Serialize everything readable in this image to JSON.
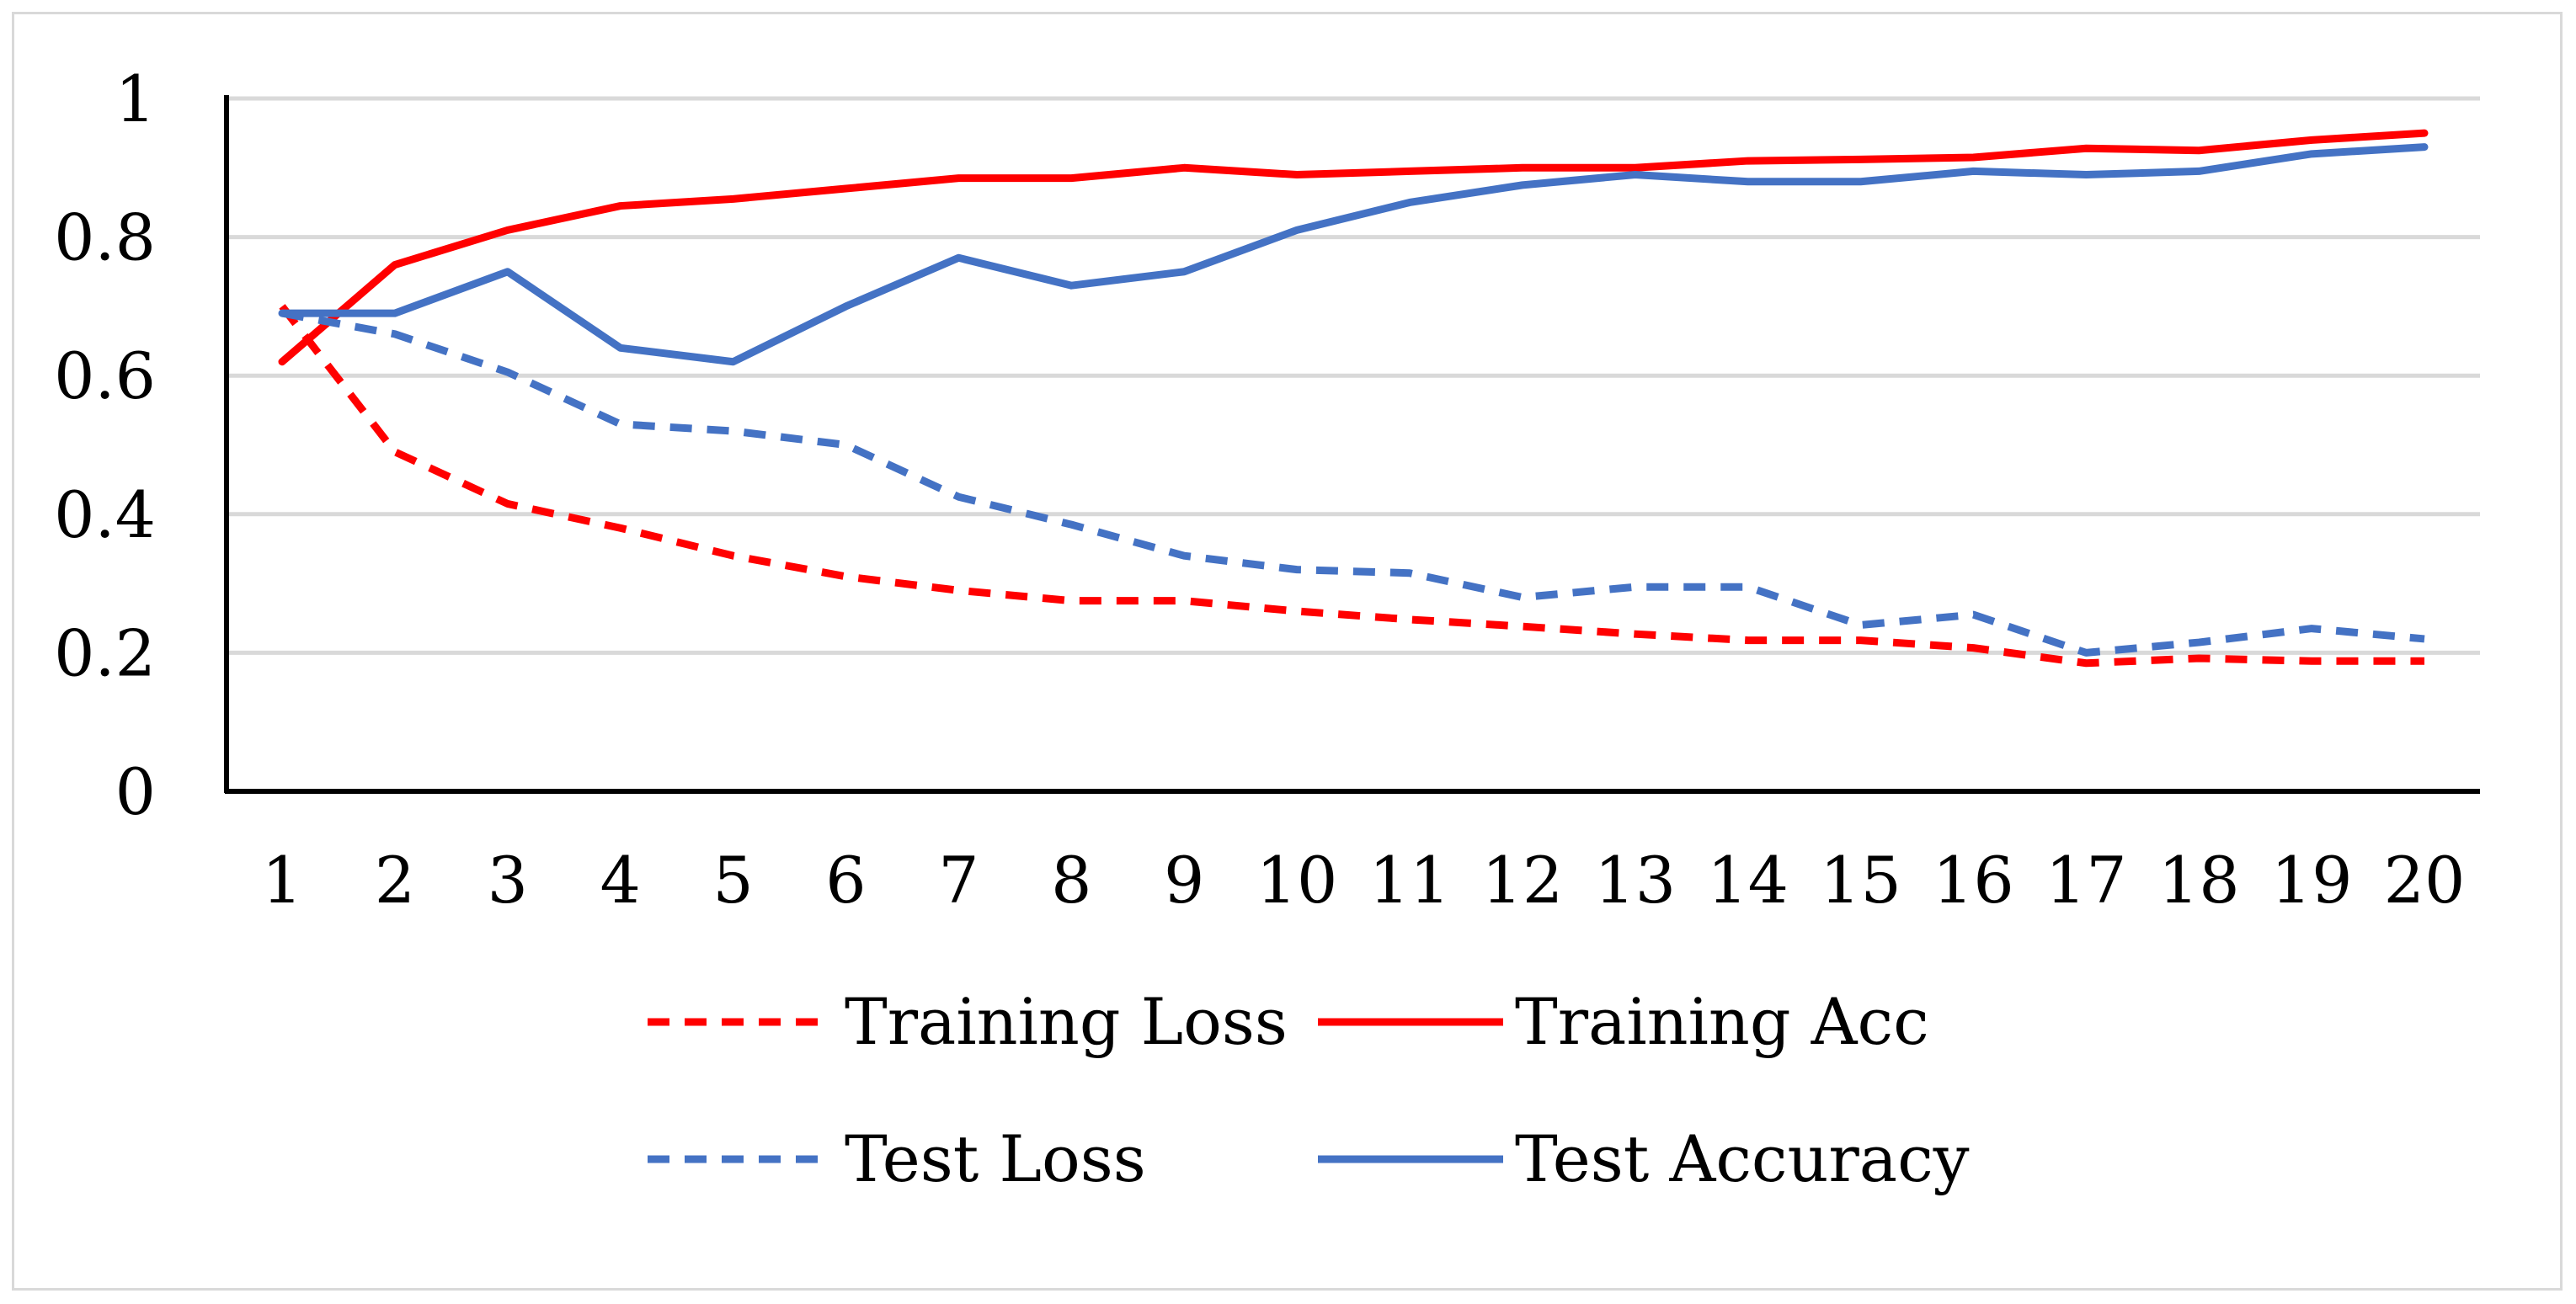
{
  "chart_data": {
    "type": "line",
    "title": "",
    "xlabel": "",
    "ylabel": "",
    "x": [
      1,
      2,
      3,
      4,
      5,
      6,
      7,
      8,
      9,
      10,
      11,
      12,
      13,
      14,
      15,
      16,
      17,
      18,
      19,
      20
    ],
    "x_tick_labels": [
      "1",
      "2",
      "3",
      "4",
      "5",
      "6",
      "7",
      "8",
      "9",
      "10",
      "11",
      "12",
      "13",
      "14",
      "15",
      "16",
      "17",
      "18",
      "19",
      "20"
    ],
    "ylim": [
      0,
      1
    ],
    "y_ticks": [
      0,
      0.2,
      0.4,
      0.6,
      0.8,
      1
    ],
    "y_tick_labels": [
      "0",
      "0.2",
      "0.4",
      "0.6",
      "0.8",
      "1"
    ],
    "grid": true,
    "legend_position": "bottom",
    "series": [
      {
        "name": "Training Loss",
        "color": "#ff0000",
        "dash": "dashed",
        "values": [
          0.7,
          0.49,
          0.415,
          0.38,
          0.34,
          0.31,
          0.29,
          0.275,
          0.275,
          0.26,
          0.248,
          0.238,
          0.227,
          0.218,
          0.218,
          0.207,
          0.185,
          0.192,
          0.188,
          0.188
        ]
      },
      {
        "name": "Training Acc",
        "color": "#ff0000",
        "dash": "solid",
        "values": [
          0.62,
          0.76,
          0.81,
          0.845,
          0.855,
          0.87,
          0.885,
          0.885,
          0.9,
          0.89,
          0.895,
          0.9,
          0.9,
          0.91,
          0.912,
          0.915,
          0.928,
          0.925,
          0.94,
          0.95
        ]
      },
      {
        "name": "Test Loss",
        "color": "#4472c4",
        "dash": "dashed",
        "values": [
          0.69,
          0.66,
          0.605,
          0.53,
          0.52,
          0.5,
          0.425,
          0.385,
          0.34,
          0.32,
          0.315,
          0.28,
          0.295,
          0.295,
          0.24,
          0.255,
          0.2,
          0.215,
          0.235,
          0.22
        ]
      },
      {
        "name": "Test Accuracy",
        "color": "#4472c4",
        "dash": "solid",
        "values": [
          0.69,
          0.69,
          0.75,
          0.64,
          0.62,
          0.7,
          0.77,
          0.73,
          0.75,
          0.81,
          0.85,
          0.875,
          0.89,
          0.88,
          0.88,
          0.895,
          0.89,
          0.895,
          0.92,
          0.93
        ]
      }
    ]
  }
}
